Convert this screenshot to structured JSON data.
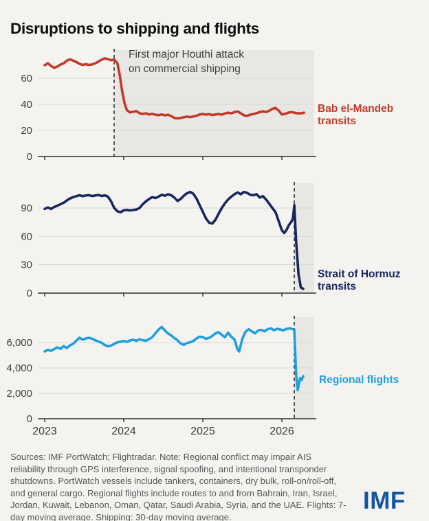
{
  "page": {
    "title": "Disruptions to shipping and flights",
    "logo_text": "IMF"
  },
  "annotation": {
    "text": "First major Houthi attack\non commercial shipping"
  },
  "footer": {
    "text": "Sources: IMF PortWatch; Flightradar. Note: Regional conflict may impair AIS reliability through GPS interference, signal spoofing, and intentional transponder shutdowns. PortWatch vessels include tankers, containers, dry bulk, roll-on/roll-off, and general cargo. Regional flights include routes to and from Bahrain, Iran, Israel, Jordan, Kuwait, Lebanon, Oman, Qatar, Saudi Arabia, Syria, and the UAE. Flights: 7-day moving average. Shipping: 30-day moving average."
  },
  "colors": {
    "background": "#f4f3f0",
    "shaded_region": "#e8e7e3",
    "gridline": "#d8d7d3",
    "axis": "#2e2e2e",
    "tick_text": "#3c3c3c",
    "event_line": "#3a3a3a",
    "bab_el_mandeb_red": "#c23a2a",
    "hormuz_navy": "#17265e",
    "flights_blue": "#1f9fe0",
    "imf_logo_blue": "#1157a5",
    "title_text": "#0e0e0e",
    "footer_text": "#57575a"
  },
  "chart_data": [
    {
      "type": "line",
      "name": "bab-el-mandeb-transits",
      "title": "Bab el-Mandeb transits",
      "label": "Bab el-Mandeb\ntransits",
      "color": "#c23a2a",
      "ylabel": "",
      "ylim": [
        0,
        82
      ],
      "xlim": [
        2023.0,
        2026.41
      ],
      "event_line_x": 2023.878,
      "event_label": "First major Houthi attack on commercial shipping",
      "shaded_region": [
        2023.878,
        2026.41
      ],
      "yticks": [
        {
          "v": 0,
          "label": "0"
        },
        {
          "v": 20,
          "label": "20"
        },
        {
          "v": 40,
          "label": "40"
        },
        {
          "v": 60,
          "label": "60"
        }
      ],
      "xticks": [
        {
          "v": 2023,
          "label": "2023"
        },
        {
          "v": 2024,
          "label": "2024"
        },
        {
          "v": 2025,
          "label": "2025"
        },
        {
          "v": 2026,
          "label": "2026"
        }
      ],
      "x_axis_labels_visible": false,
      "points": [
        [
          2023.0,
          70
        ],
        [
          2023.04,
          71.5
        ],
        [
          2023.08,
          69.5
        ],
        [
          2023.12,
          68
        ],
        [
          2023.16,
          69
        ],
        [
          2023.2,
          70.5
        ],
        [
          2023.24,
          71.5
        ],
        [
          2023.28,
          73.5
        ],
        [
          2023.32,
          74.5
        ],
        [
          2023.36,
          73.5
        ],
        [
          2023.4,
          72.5
        ],
        [
          2023.44,
          71
        ],
        [
          2023.48,
          70.2
        ],
        [
          2023.52,
          70.8
        ],
        [
          2023.56,
          70.2
        ],
        [
          2023.6,
          70.6
        ],
        [
          2023.64,
          71.5
        ],
        [
          2023.68,
          72.8
        ],
        [
          2023.72,
          74.2
        ],
        [
          2023.76,
          75.3
        ],
        [
          2023.8,
          74.6
        ],
        [
          2023.84,
          73.8
        ],
        [
          2023.878,
          74.3
        ],
        [
          2023.92,
          71.5
        ],
        [
          2023.95,
          62
        ],
        [
          2023.98,
          50
        ],
        [
          2024.01,
          41
        ],
        [
          2024.04,
          35.5
        ],
        [
          2024.08,
          33.8
        ],
        [
          2024.12,
          34.3
        ],
        [
          2024.16,
          34.8
        ],
        [
          2024.2,
          33.2
        ],
        [
          2024.24,
          32.6
        ],
        [
          2024.28,
          33.1
        ],
        [
          2024.32,
          32.2
        ],
        [
          2024.36,
          32.7
        ],
        [
          2024.4,
          32.1
        ],
        [
          2024.44,
          31.7
        ],
        [
          2024.48,
          32.2
        ],
        [
          2024.52,
          31.6
        ],
        [
          2024.56,
          32.0
        ],
        [
          2024.6,
          31.0
        ],
        [
          2024.64,
          29.6
        ],
        [
          2024.68,
          29.2
        ],
        [
          2024.72,
          29.6
        ],
        [
          2024.76,
          30.1
        ],
        [
          2024.8,
          30.6
        ],
        [
          2024.84,
          30.2
        ],
        [
          2024.88,
          30.7
        ],
        [
          2024.92,
          31.2
        ],
        [
          2024.96,
          32.2
        ],
        [
          2025.0,
          32.6
        ],
        [
          2025.04,
          32.1
        ],
        [
          2025.08,
          32.5
        ],
        [
          2025.12,
          31.8
        ],
        [
          2025.16,
          32.2
        ],
        [
          2025.2,
          32.6
        ],
        [
          2025.24,
          32.1
        ],
        [
          2025.28,
          33.0
        ],
        [
          2025.32,
          33.6
        ],
        [
          2025.36,
          33.1
        ],
        [
          2025.4,
          34.0
        ],
        [
          2025.44,
          34.6
        ],
        [
          2025.48,
          33.1
        ],
        [
          2025.52,
          31.6
        ],
        [
          2025.56,
          31.1
        ],
        [
          2025.6,
          32.1
        ],
        [
          2025.64,
          32.6
        ],
        [
          2025.68,
          33.2
        ],
        [
          2025.72,
          34.1
        ],
        [
          2025.76,
          34.6
        ],
        [
          2025.8,
          34.1
        ],
        [
          2025.84,
          35.1
        ],
        [
          2025.88,
          36.6
        ],
        [
          2025.92,
          37.2
        ],
        [
          2025.96,
          35.2
        ],
        [
          2026.0,
          32.2
        ],
        [
          2026.04,
          32.7
        ],
        [
          2026.08,
          33.6
        ],
        [
          2026.12,
          34.1
        ],
        [
          2026.16,
          33.6
        ],
        [
          2026.2,
          33.1
        ],
        [
          2026.24,
          33.1
        ],
        [
          2026.28,
          33.6
        ]
      ]
    },
    {
      "type": "line",
      "name": "strait-of-hormuz-transits",
      "title": "Strait of Hormuz transits",
      "label": "Strait of Hormuz\ntransits",
      "color": "#17265e",
      "ylabel": "",
      "ylim": [
        0,
        116
      ],
      "xlim": [
        2023.0,
        2026.41
      ],
      "event_line_x": 2026.157,
      "event_label": "",
      "shaded_region": [
        2026.157,
        2026.41
      ],
      "yticks": [
        {
          "v": 0,
          "label": "0"
        },
        {
          "v": 30,
          "label": "30"
        },
        {
          "v": 60,
          "label": "60"
        },
        {
          "v": 90,
          "label": "90"
        }
      ],
      "xticks": [
        {
          "v": 2023,
          "label": "2023"
        },
        {
          "v": 2024,
          "label": "2024"
        },
        {
          "v": 2025,
          "label": "2025"
        },
        {
          "v": 2026,
          "label": "2026"
        }
      ],
      "x_axis_labels_visible": false,
      "points": [
        [
          2023.0,
          89
        ],
        [
          2023.04,
          90.5
        ],
        [
          2023.08,
          89
        ],
        [
          2023.12,
          91
        ],
        [
          2023.16,
          92.5
        ],
        [
          2023.2,
          94
        ],
        [
          2023.24,
          95.5
        ],
        [
          2023.28,
          98
        ],
        [
          2023.32,
          100
        ],
        [
          2023.36,
          101.5
        ],
        [
          2023.4,
          102.5
        ],
        [
          2023.44,
          103.5
        ],
        [
          2023.48,
          102.5
        ],
        [
          2023.52,
          103.2
        ],
        [
          2023.56,
          103.6
        ],
        [
          2023.6,
          102.6
        ],
        [
          2023.64,
          103.2
        ],
        [
          2023.68,
          103.8
        ],
        [
          2023.72,
          102.6
        ],
        [
          2023.76,
          103.4
        ],
        [
          2023.8,
          102.0
        ],
        [
          2023.84,
          97
        ],
        [
          2023.88,
          90
        ],
        [
          2023.92,
          86.5
        ],
        [
          2023.96,
          85.5
        ],
        [
          2024.0,
          87.5
        ],
        [
          2024.04,
          88
        ],
        [
          2024.08,
          87.4
        ],
        [
          2024.12,
          87.9
        ],
        [
          2024.16,
          88.4
        ],
        [
          2024.2,
          90
        ],
        [
          2024.24,
          94
        ],
        [
          2024.28,
          97
        ],
        [
          2024.32,
          99.5
        ],
        [
          2024.36,
          101.5
        ],
        [
          2024.4,
          100.5
        ],
        [
          2024.44,
          102
        ],
        [
          2024.48,
          104
        ],
        [
          2024.52,
          103
        ],
        [
          2024.56,
          104.5
        ],
        [
          2024.6,
          103.5
        ],
        [
          2024.64,
          101
        ],
        [
          2024.68,
          97.5
        ],
        [
          2024.72,
          99.5
        ],
        [
          2024.76,
          103
        ],
        [
          2024.8,
          105.5
        ],
        [
          2024.84,
          107
        ],
        [
          2024.88,
          105
        ],
        [
          2024.92,
          100
        ],
        [
          2024.96,
          93
        ],
        [
          2025.0,
          86
        ],
        [
          2025.04,
          79
        ],
        [
          2025.08,
          74.5
        ],
        [
          2025.12,
          73.5
        ],
        [
          2025.16,
          77.5
        ],
        [
          2025.2,
          84
        ],
        [
          2025.24,
          90
        ],
        [
          2025.28,
          95
        ],
        [
          2025.32,
          99
        ],
        [
          2025.36,
          102
        ],
        [
          2025.4,
          104.5
        ],
        [
          2025.44,
          106.5
        ],
        [
          2025.48,
          104.5
        ],
        [
          2025.52,
          107
        ],
        [
          2025.56,
          106
        ],
        [
          2025.6,
          104
        ],
        [
          2025.64,
          103.5
        ],
        [
          2025.68,
          104.5
        ],
        [
          2025.72,
          101
        ],
        [
          2025.76,
          102.5
        ],
        [
          2025.8,
          99
        ],
        [
          2025.84,
          94.5
        ],
        [
          2025.88,
          90
        ],
        [
          2025.92,
          85.5
        ],
        [
          2025.96,
          76
        ],
        [
          2026.0,
          66.5
        ],
        [
          2026.03,
          63.5
        ],
        [
          2026.06,
          67
        ],
        [
          2026.09,
          72
        ],
        [
          2026.12,
          75.5
        ],
        [
          2026.14,
          79
        ],
        [
          2026.157,
          93
        ],
        [
          2026.18,
          55
        ],
        [
          2026.21,
          20
        ],
        [
          2026.24,
          6
        ],
        [
          2026.27,
          4.5
        ]
      ]
    },
    {
      "type": "line",
      "name": "regional-flights",
      "title": "Regional flights",
      "label": "Regional flights",
      "color": "#1f9fe0",
      "ylabel": "",
      "ylim": [
        0,
        8000
      ],
      "xlim": [
        2023.0,
        2026.41
      ],
      "event_line_x": 2026.157,
      "event_label": "",
      "shaded_region": [
        2026.157,
        2026.41
      ],
      "yticks": [
        {
          "v": 0,
          "label": "0"
        },
        {
          "v": 2000,
          "label": "2,000"
        },
        {
          "v": 4000,
          "label": "4,000"
        },
        {
          "v": 6000,
          "label": "6,000"
        }
      ],
      "xticks": [
        {
          "v": 2023,
          "label": "2023"
        },
        {
          "v": 2024,
          "label": "2024"
        },
        {
          "v": 2025,
          "label": "2025"
        },
        {
          "v": 2026,
          "label": "2026"
        }
      ],
      "x_axis_labels_visible": true,
      "points": [
        [
          2023.0,
          5300
        ],
        [
          2023.04,
          5420
        ],
        [
          2023.08,
          5350
        ],
        [
          2023.12,
          5480
        ],
        [
          2023.16,
          5620
        ],
        [
          2023.2,
          5500
        ],
        [
          2023.24,
          5720
        ],
        [
          2023.28,
          5560
        ],
        [
          2023.32,
          5780
        ],
        [
          2023.36,
          5900
        ],
        [
          2023.4,
          6150
        ],
        [
          2023.44,
          6380
        ],
        [
          2023.48,
          6220
        ],
        [
          2023.52,
          6320
        ],
        [
          2023.56,
          6380
        ],
        [
          2023.6,
          6300
        ],
        [
          2023.64,
          6180
        ],
        [
          2023.68,
          6080
        ],
        [
          2023.72,
          5980
        ],
        [
          2023.76,
          5800
        ],
        [
          2023.8,
          5700
        ],
        [
          2023.84,
          5760
        ],
        [
          2023.88,
          5900
        ],
        [
          2023.92,
          6020
        ],
        [
          2023.96,
          6060
        ],
        [
          2024.0,
          6120
        ],
        [
          2024.04,
          6050
        ],
        [
          2024.08,
          6160
        ],
        [
          2024.12,
          6220
        ],
        [
          2024.16,
          6140
        ],
        [
          2024.2,
          6260
        ],
        [
          2024.24,
          6180
        ],
        [
          2024.28,
          6140
        ],
        [
          2024.32,
          6260
        ],
        [
          2024.36,
          6420
        ],
        [
          2024.4,
          6720
        ],
        [
          2024.44,
          7020
        ],
        [
          2024.48,
          7220
        ],
        [
          2024.52,
          6950
        ],
        [
          2024.56,
          6720
        ],
        [
          2024.6,
          6560
        ],
        [
          2024.64,
          6350
        ],
        [
          2024.68,
          6180
        ],
        [
          2024.72,
          5920
        ],
        [
          2024.76,
          5820
        ],
        [
          2024.8,
          5960
        ],
        [
          2024.84,
          6020
        ],
        [
          2024.88,
          6120
        ],
        [
          2024.92,
          6320
        ],
        [
          2024.96,
          6460
        ],
        [
          2025.0,
          6420
        ],
        [
          2025.04,
          6300
        ],
        [
          2025.08,
          6360
        ],
        [
          2025.12,
          6520
        ],
        [
          2025.16,
          6720
        ],
        [
          2025.2,
          6820
        ],
        [
          2025.24,
          6600
        ],
        [
          2025.28,
          6420
        ],
        [
          2025.32,
          6780
        ],
        [
          2025.36,
          6450
        ],
        [
          2025.4,
          6250
        ],
        [
          2025.44,
          5450
        ],
        [
          2025.46,
          5300
        ],
        [
          2025.5,
          6300
        ],
        [
          2025.54,
          6850
        ],
        [
          2025.58,
          7050
        ],
        [
          2025.62,
          6880
        ],
        [
          2025.66,
          6720
        ],
        [
          2025.7,
          6950
        ],
        [
          2025.74,
          7000
        ],
        [
          2025.78,
          6880
        ],
        [
          2025.82,
          7050
        ],
        [
          2025.86,
          7120
        ],
        [
          2025.9,
          6960
        ],
        [
          2025.94,
          7080
        ],
        [
          2025.98,
          7020
        ],
        [
          2026.02,
          6950
        ],
        [
          2026.06,
          7080
        ],
        [
          2026.1,
          7120
        ],
        [
          2026.14,
          7050
        ],
        [
          2026.157,
          6980
        ],
        [
          2026.18,
          3500
        ],
        [
          2026.2,
          2250
        ],
        [
          2026.23,
          3200
        ],
        [
          2026.25,
          3050
        ],
        [
          2026.27,
          3350
        ]
      ]
    }
  ]
}
